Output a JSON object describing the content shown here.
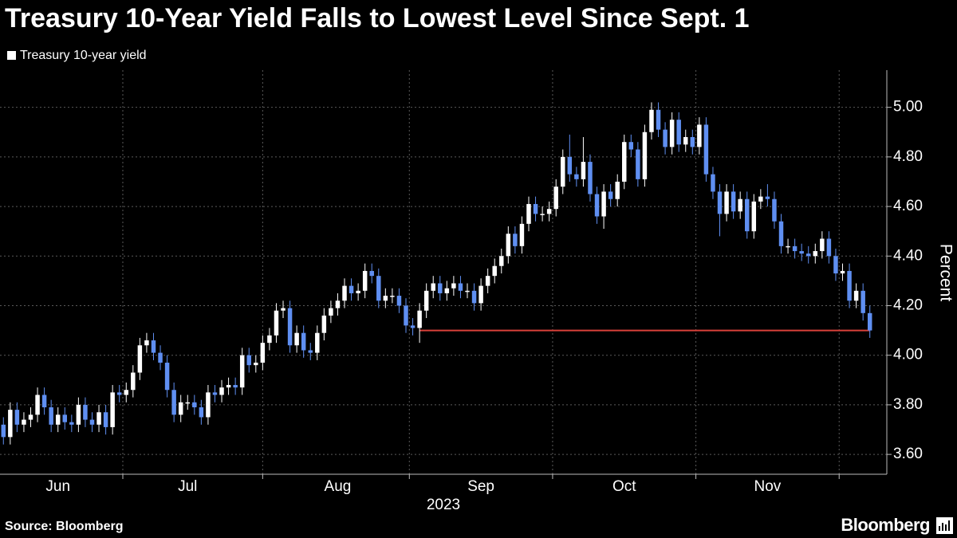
{
  "chart_data": {
    "type": "candlestick",
    "title": "Treasury 10-Year Yield Falls to Lowest Level Since Sept. 1",
    "ylabel": "Percent",
    "xlabel": "2023",
    "source": "Source: Bloomberg",
    "brand": "Bloomberg",
    "categories": [
      null,
      null,
      null,
      null,
      null,
      null,
      null,
      null,
      "Jun",
      null,
      null,
      null,
      null,
      null,
      null,
      null,
      null,
      null,
      null,
      null,
      null,
      null,
      null,
      null,
      null,
      null,
      null,
      "Jul",
      null,
      null,
      null,
      null,
      null,
      null,
      null,
      null,
      null,
      null,
      null,
      null,
      null,
      null,
      null,
      null,
      null,
      null,
      null,
      null,
      null,
      "Aug",
      null,
      null,
      null,
      null,
      null,
      null,
      null,
      null,
      null,
      null,
      null,
      null,
      null,
      null,
      null,
      null,
      null,
      null,
      null,
      null,
      "Sep",
      null,
      null,
      null,
      null,
      null,
      null,
      null,
      null,
      null,
      null,
      null,
      null,
      null,
      null,
      null,
      null,
      null,
      null,
      null,
      null,
      "Oct",
      null,
      null,
      null,
      null,
      null,
      null,
      null,
      null,
      null,
      null,
      null,
      null,
      null,
      null,
      null,
      null,
      null,
      null,
      null,
      null,
      "Nov",
      null,
      null,
      null,
      null,
      null,
      null,
      null,
      null,
      null,
      null,
      null,
      null,
      null,
      null,
      null
    ],
    "series": [
      {
        "name": "Treasury 10-year yield",
        "up_color": "#ffffff",
        "down_color": "#5f8ff2",
        "open": [
          3.72,
          3.67,
          3.78,
          3.72,
          3.74,
          3.76,
          3.84,
          3.79,
          3.72,
          3.76,
          3.73,
          3.72,
          3.8,
          3.74,
          3.72,
          3.77,
          3.71,
          3.85,
          3.84,
          3.86,
          3.93,
          4.04,
          4.06,
          4.01,
          3.97,
          3.86,
          3.76,
          3.81,
          3.81,
          3.79,
          3.75,
          3.85,
          3.84,
          3.87,
          3.88,
          3.87,
          4.0,
          3.96,
          3.97,
          4.05,
          4.08,
          4.18,
          4.19,
          4.04,
          4.09,
          4.02,
          4.01,
          4.09,
          4.16,
          4.19,
          4.22,
          4.28,
          4.25,
          4.26,
          4.34,
          4.32,
          4.22,
          4.24,
          4.24,
          4.2,
          4.12,
          4.11,
          4.18,
          4.26,
          4.29,
          4.25,
          4.27,
          4.29,
          4.26,
          4.26,
          4.21,
          4.28,
          4.32,
          4.36,
          4.4,
          4.49,
          4.44,
          4.53,
          4.61,
          4.57,
          4.57,
          4.59,
          4.68,
          4.8,
          4.73,
          4.71,
          4.78,
          4.65,
          4.56,
          4.66,
          4.63,
          4.7,
          4.86,
          4.83,
          4.71,
          4.9,
          4.99,
          4.91,
          4.84,
          4.95,
          4.85,
          4.88,
          4.84,
          4.93,
          4.73,
          4.66,
          4.57,
          4.66,
          4.58,
          4.63,
          4.5,
          4.62,
          4.64,
          4.63,
          4.54,
          4.44,
          4.44,
          4.42,
          4.41,
          4.4,
          4.42,
          4.47,
          4.4,
          4.33,
          4.34,
          4.22,
          4.26,
          4.17
        ],
        "high": [
          3.75,
          3.81,
          3.81,
          3.77,
          3.79,
          3.87,
          3.87,
          3.82,
          3.79,
          3.79,
          3.76,
          3.83,
          3.83,
          3.77,
          3.8,
          3.8,
          3.88,
          3.88,
          3.89,
          3.96,
          4.07,
          4.09,
          4.09,
          4.04,
          4.0,
          3.89,
          3.84,
          3.84,
          3.84,
          3.82,
          3.88,
          3.88,
          3.9,
          3.91,
          3.91,
          4.03,
          4.03,
          4.0,
          4.08,
          4.11,
          4.21,
          4.22,
          4.22,
          4.12,
          4.12,
          4.05,
          4.12,
          4.19,
          4.22,
          4.25,
          4.31,
          4.31,
          4.29,
          4.37,
          4.37,
          4.35,
          4.27,
          4.27,
          4.27,
          4.23,
          4.15,
          4.21,
          4.29,
          4.32,
          4.32,
          4.3,
          4.32,
          4.32,
          4.29,
          4.29,
          4.31,
          4.35,
          4.39,
          4.43,
          4.52,
          4.52,
          4.56,
          4.64,
          4.64,
          4.6,
          4.62,
          4.71,
          4.83,
          4.89,
          4.76,
          4.88,
          4.81,
          4.68,
          4.69,
          4.69,
          4.73,
          4.89,
          4.89,
          4.86,
          4.93,
          5.02,
          5.02,
          4.94,
          4.98,
          4.98,
          4.91,
          4.91,
          4.96,
          4.96,
          4.76,
          4.69,
          4.69,
          4.69,
          4.66,
          4.66,
          4.65,
          4.67,
          4.69,
          4.66,
          4.57,
          4.47,
          4.47,
          4.45,
          4.44,
          4.45,
          4.5,
          4.5,
          4.43,
          4.37,
          4.37,
          4.29,
          4.29,
          4.2
        ],
        "low": [
          3.64,
          3.64,
          3.69,
          3.69,
          3.71,
          3.73,
          3.76,
          3.69,
          3.69,
          3.7,
          3.69,
          3.69,
          3.71,
          3.69,
          3.69,
          3.68,
          3.68,
          3.81,
          3.81,
          3.83,
          3.9,
          4.01,
          3.98,
          3.94,
          3.83,
          3.73,
          3.73,
          3.78,
          3.76,
          3.72,
          3.72,
          3.81,
          3.81,
          3.84,
          3.84,
          3.84,
          3.93,
          3.93,
          3.94,
          4.02,
          4.05,
          4.15,
          4.01,
          4.01,
          3.99,
          3.98,
          3.98,
          4.06,
          4.13,
          4.16,
          4.19,
          4.22,
          4.22,
          4.23,
          4.29,
          4.19,
          4.19,
          4.21,
          4.17,
          4.09,
          4.08,
          4.05,
          4.15,
          4.23,
          4.22,
          4.22,
          4.24,
          4.23,
          4.23,
          4.18,
          4.18,
          4.25,
          4.29,
          4.33,
          4.37,
          4.41,
          4.41,
          4.5,
          4.54,
          4.54,
          4.54,
          4.56,
          4.65,
          4.7,
          4.68,
          4.68,
          4.62,
          4.53,
          4.51,
          4.6,
          4.6,
          4.67,
          4.8,
          4.68,
          4.68,
          4.87,
          4.88,
          4.81,
          4.81,
          4.82,
          4.82,
          4.81,
          4.81,
          4.7,
          4.63,
          4.48,
          4.54,
          4.55,
          4.55,
          4.47,
          4.47,
          4.59,
          4.6,
          4.51,
          4.41,
          4.41,
          4.39,
          4.38,
          4.37,
          4.37,
          4.39,
          4.37,
          4.3,
          4.3,
          4.19,
          4.19,
          4.14,
          4.07
        ],
        "close": [
          3.67,
          3.78,
          3.72,
          3.74,
          3.76,
          3.84,
          3.79,
          3.72,
          3.76,
          3.73,
          3.72,
          3.8,
          3.74,
          3.72,
          3.77,
          3.71,
          3.85,
          3.84,
          3.86,
          3.93,
          4.04,
          4.06,
          4.01,
          3.97,
          3.86,
          3.76,
          3.81,
          3.81,
          3.79,
          3.75,
          3.85,
          3.84,
          3.87,
          3.88,
          3.87,
          4.0,
          3.96,
          3.97,
          4.05,
          4.08,
          4.18,
          4.19,
          4.04,
          4.09,
          4.02,
          4.01,
          4.09,
          4.16,
          4.19,
          4.22,
          4.28,
          4.25,
          4.26,
          4.34,
          4.32,
          4.22,
          4.24,
          4.24,
          4.2,
          4.12,
          4.11,
          4.18,
          4.26,
          4.29,
          4.25,
          4.27,
          4.29,
          4.26,
          4.26,
          4.21,
          4.28,
          4.32,
          4.36,
          4.4,
          4.49,
          4.44,
          4.53,
          4.61,
          4.57,
          4.57,
          4.59,
          4.68,
          4.8,
          4.73,
          4.71,
          4.78,
          4.65,
          4.56,
          4.66,
          4.63,
          4.7,
          4.86,
          4.83,
          4.71,
          4.9,
          4.99,
          4.91,
          4.84,
          4.95,
          4.85,
          4.88,
          4.84,
          4.93,
          4.73,
          4.66,
          4.57,
          4.66,
          4.58,
          4.63,
          4.5,
          4.62,
          4.64,
          4.63,
          4.54,
          4.44,
          4.44,
          4.42,
          4.41,
          4.4,
          4.42,
          4.47,
          4.4,
          4.33,
          4.34,
          4.22,
          4.26,
          4.17,
          4.1
        ]
      }
    ],
    "reference_line": {
      "value": 4.1,
      "color": "#d9413a"
    },
    "ylim": [
      3.52,
      5.15
    ],
    "yticks": [
      {
        "value": 3.6,
        "label": "3.60"
      },
      {
        "value": 3.8,
        "label": "3.80"
      },
      {
        "value": 4,
        "label": "4.00"
      },
      {
        "value": 4.2,
        "label": "4.20"
      },
      {
        "value": 4.4,
        "label": "4.40"
      },
      {
        "value": 4.6,
        "label": "4.60"
      },
      {
        "value": 4.8,
        "label": "4.80"
      },
      {
        "value": 5,
        "label": "5.00"
      }
    ],
    "grid": true,
    "legend": "top-left"
  }
}
